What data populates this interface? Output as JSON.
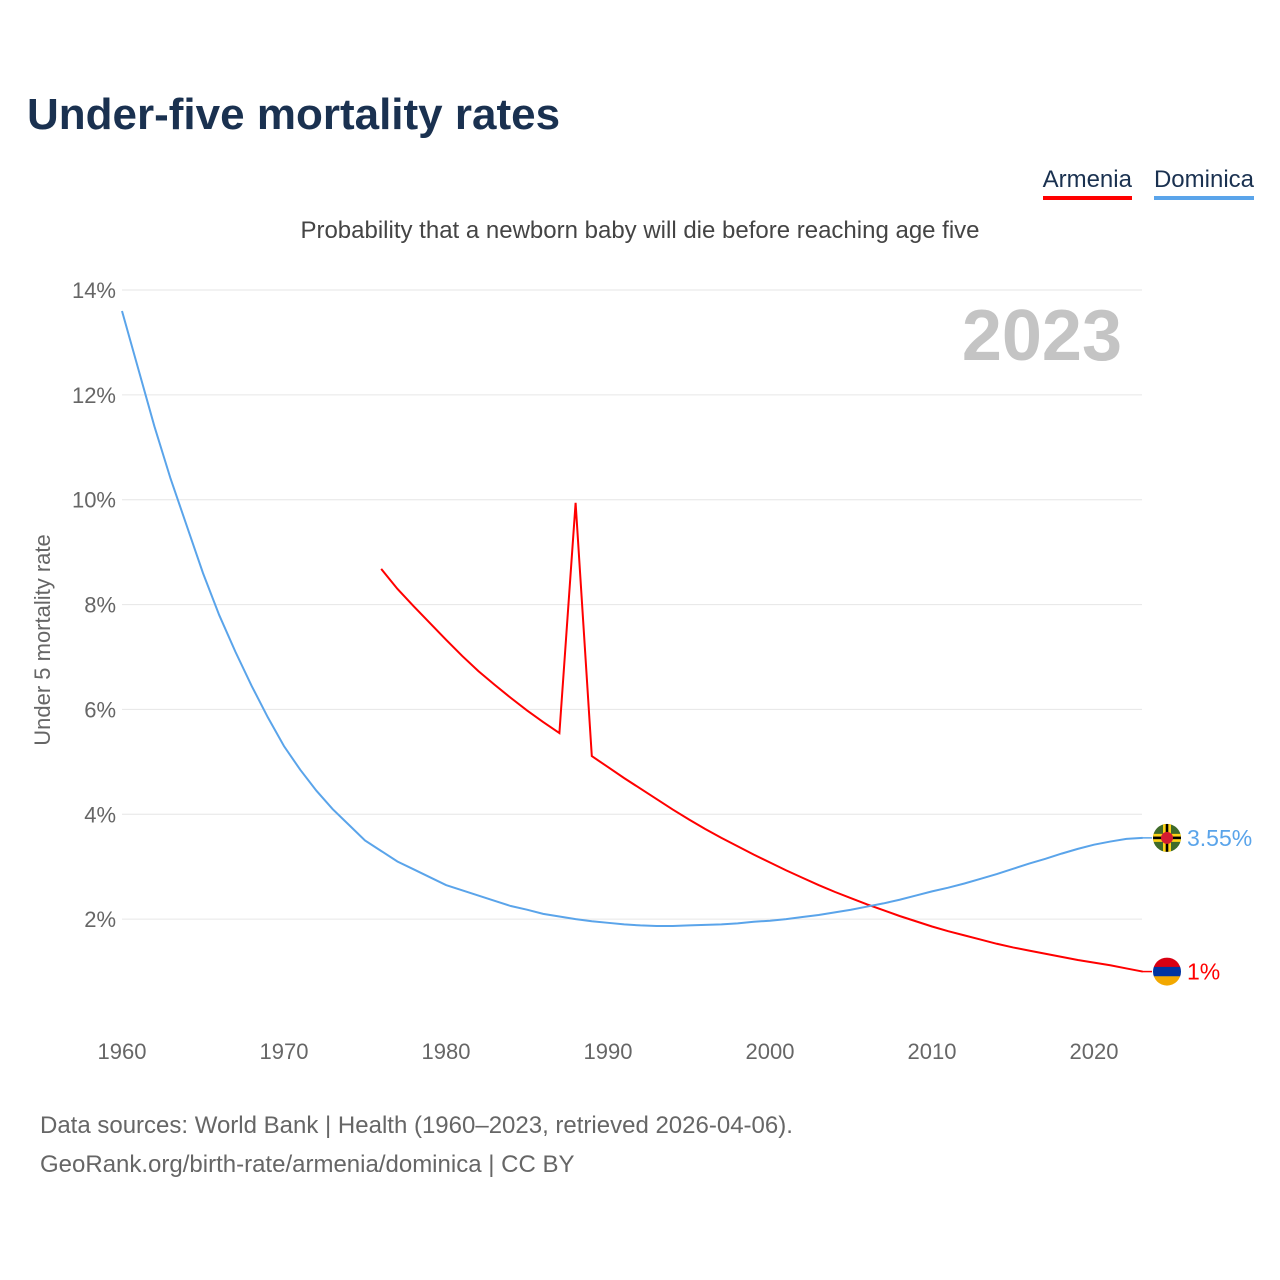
{
  "title": "Under-five mortality rates",
  "subtitle": "Probability that a newborn baby will die before reaching age five",
  "source_line1": "Data sources: World Bank | Health (1960–2023, retrieved 2026-04-06).",
  "source_line2": "GeoRank.org/birth-rate/armenia/dominica | CC BY",
  "chart_data": {
    "type": "line",
    "title": "Under-five mortality rates",
    "ylabel": "Under 5 mortality rate",
    "xlabel": "",
    "year_label": "2023",
    "xlim": [
      1960,
      2023
    ],
    "ylim": [
      0,
      14
    ],
    "xticks": [
      1960,
      1970,
      1980,
      1990,
      2000,
      2010,
      2020
    ],
    "yticks": [
      2,
      4,
      6,
      8,
      10,
      12,
      14
    ],
    "ytick_labels": [
      "2%",
      "4%",
      "6%",
      "8%",
      "10%",
      "12%",
      "14%"
    ],
    "grid": true,
    "legend_position": "top-right",
    "series": [
      {
        "name": "Armenia",
        "color": "#ff0000",
        "end_label": "1%",
        "flag": "armenia-flag",
        "x_start": 1976,
        "values": [
          8.68,
          8.3,
          7.97,
          7.65,
          7.33,
          7.02,
          6.73,
          6.47,
          6.22,
          5.98,
          5.76,
          5.55,
          9.94,
          5.11,
          4.9,
          4.69,
          4.49,
          4.29,
          4.09,
          3.9,
          3.72,
          3.55,
          3.39,
          3.23,
          3.08,
          2.93,
          2.79,
          2.65,
          2.52,
          2.4,
          2.28,
          2.17,
          2.06,
          1.96,
          1.86,
          1.77,
          1.69,
          1.61,
          1.53,
          1.46,
          1.4,
          1.34,
          1.28,
          1.22,
          1.17,
          1.12,
          1.06,
          1.0
        ]
      },
      {
        "name": "Dominica",
        "color": "#5aa4ea",
        "end_label": "3.55%",
        "flag": "dominica-flag",
        "x_start": 1960,
        "values": [
          13.6,
          12.5,
          11.4,
          10.4,
          9.5,
          8.6,
          7.8,
          7.1,
          6.45,
          5.85,
          5.3,
          4.85,
          4.45,
          4.1,
          3.8,
          3.5,
          3.3,
          3.1,
          2.95,
          2.8,
          2.65,
          2.55,
          2.45,
          2.35,
          2.25,
          2.18,
          2.1,
          2.05,
          2.0,
          1.96,
          1.93,
          1.9,
          1.88,
          1.87,
          1.87,
          1.88,
          1.89,
          1.9,
          1.92,
          1.95,
          1.97,
          2.0,
          2.04,
          2.08,
          2.13,
          2.18,
          2.24,
          2.3,
          2.37,
          2.45,
          2.53,
          2.6,
          2.68,
          2.77,
          2.86,
          2.96,
          3.06,
          3.15,
          3.25,
          3.34,
          3.42,
          3.48,
          3.53,
          3.55
        ]
      }
    ]
  }
}
